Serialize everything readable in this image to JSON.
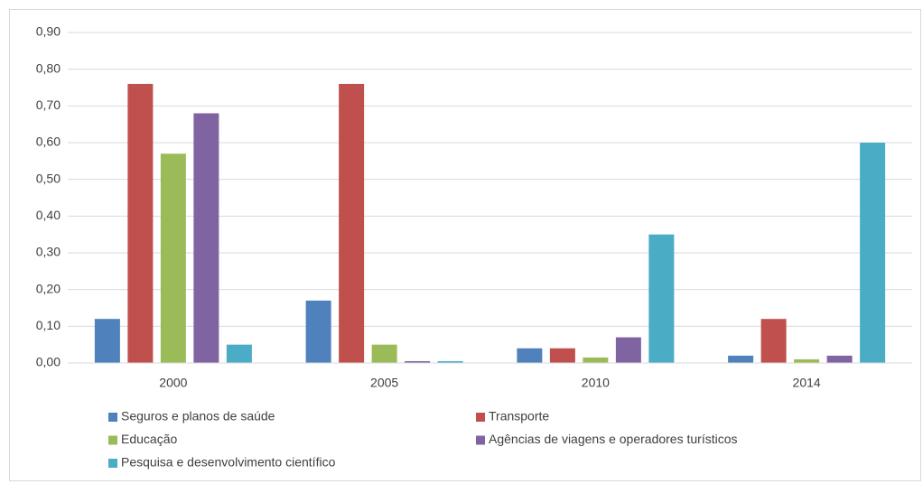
{
  "chart_data": {
    "type": "bar",
    "categories": [
      "2000",
      "2005",
      "2010",
      "2014"
    ],
    "series": [
      {
        "name": "Seguros e planos de saúde",
        "color": "#4f81bd",
        "values": [
          0.12,
          0.17,
          0.04,
          0.02
        ]
      },
      {
        "name": "Transporte",
        "color": "#c0504d",
        "values": [
          0.76,
          0.76,
          0.04,
          0.12
        ]
      },
      {
        "name": "Educação",
        "color": "#9bbb59",
        "values": [
          0.57,
          0.05,
          0.015,
          0.01
        ]
      },
      {
        "name": "Agências de viagens e operadores turísticos",
        "color": "#8064a2",
        "values": [
          0.68,
          0.005,
          0.07,
          0.02
        ]
      },
      {
        "name": "Pesquisa e desenvolvimento científico",
        "color": "#4bacc6",
        "values": [
          0.05,
          0.005,
          0.35,
          0.6
        ]
      }
    ],
    "ylim": [
      0,
      0.9
    ],
    "yticks": [
      {
        "value": 0,
        "label": "0,00"
      },
      {
        "value": 0.1,
        "label": "0,10"
      },
      {
        "value": 0.2,
        "label": "0,20"
      },
      {
        "value": 0.3,
        "label": "0,30"
      },
      {
        "value": 0.4,
        "label": "0,40"
      },
      {
        "value": 0.5,
        "label": "0,50"
      },
      {
        "value": 0.6,
        "label": "0,60"
      },
      {
        "value": 0.7,
        "label": "0,70"
      },
      {
        "value": 0.8,
        "label": "0,80"
      },
      {
        "value": 0.9,
        "label": "0,90"
      }
    ],
    "grid": true,
    "legend": "bottom"
  }
}
